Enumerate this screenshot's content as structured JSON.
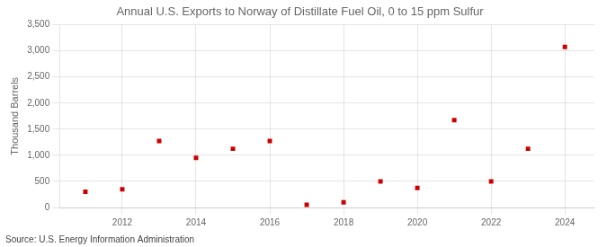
{
  "chart_data": {
    "type": "scatter",
    "title": "Annual U.S. Exports to Norway of Distillate Fuel Oil, 0 to 15 ppm Sulfur",
    "ylabel": "Thousand Barrels",
    "source": "Source: U.S. Energy Information Administration",
    "x": [
      2011,
      2012,
      2013,
      2014,
      2015,
      2016,
      2017,
      2018,
      2019,
      2020,
      2021,
      2022,
      2023,
      2024
    ],
    "values": [
      300,
      350,
      1275,
      950,
      1125,
      1275,
      50,
      100,
      500,
      375,
      1675,
      500,
      1125,
      3075
    ],
    "color": "#cc0000",
    "marker": "square",
    "xlim": [
      2010.3,
      2024.8
    ],
    "xticks": [
      2012,
      2014,
      2016,
      2018,
      2020,
      2022,
      2024
    ],
    "ylim": [
      0,
      3500
    ],
    "yticks": [
      0,
      500,
      {
        "value": 1000,
        "label": "1,000"
      },
      {
        "value": 1500,
        "label": "1,500"
      },
      {
        "value": 2000,
        "label": "2,000"
      },
      {
        "value": 2500,
        "label": "2,500"
      },
      {
        "value": 3000,
        "label": "3,000"
      },
      {
        "value": 3500,
        "label": "3,500"
      }
    ],
    "grid": true
  }
}
